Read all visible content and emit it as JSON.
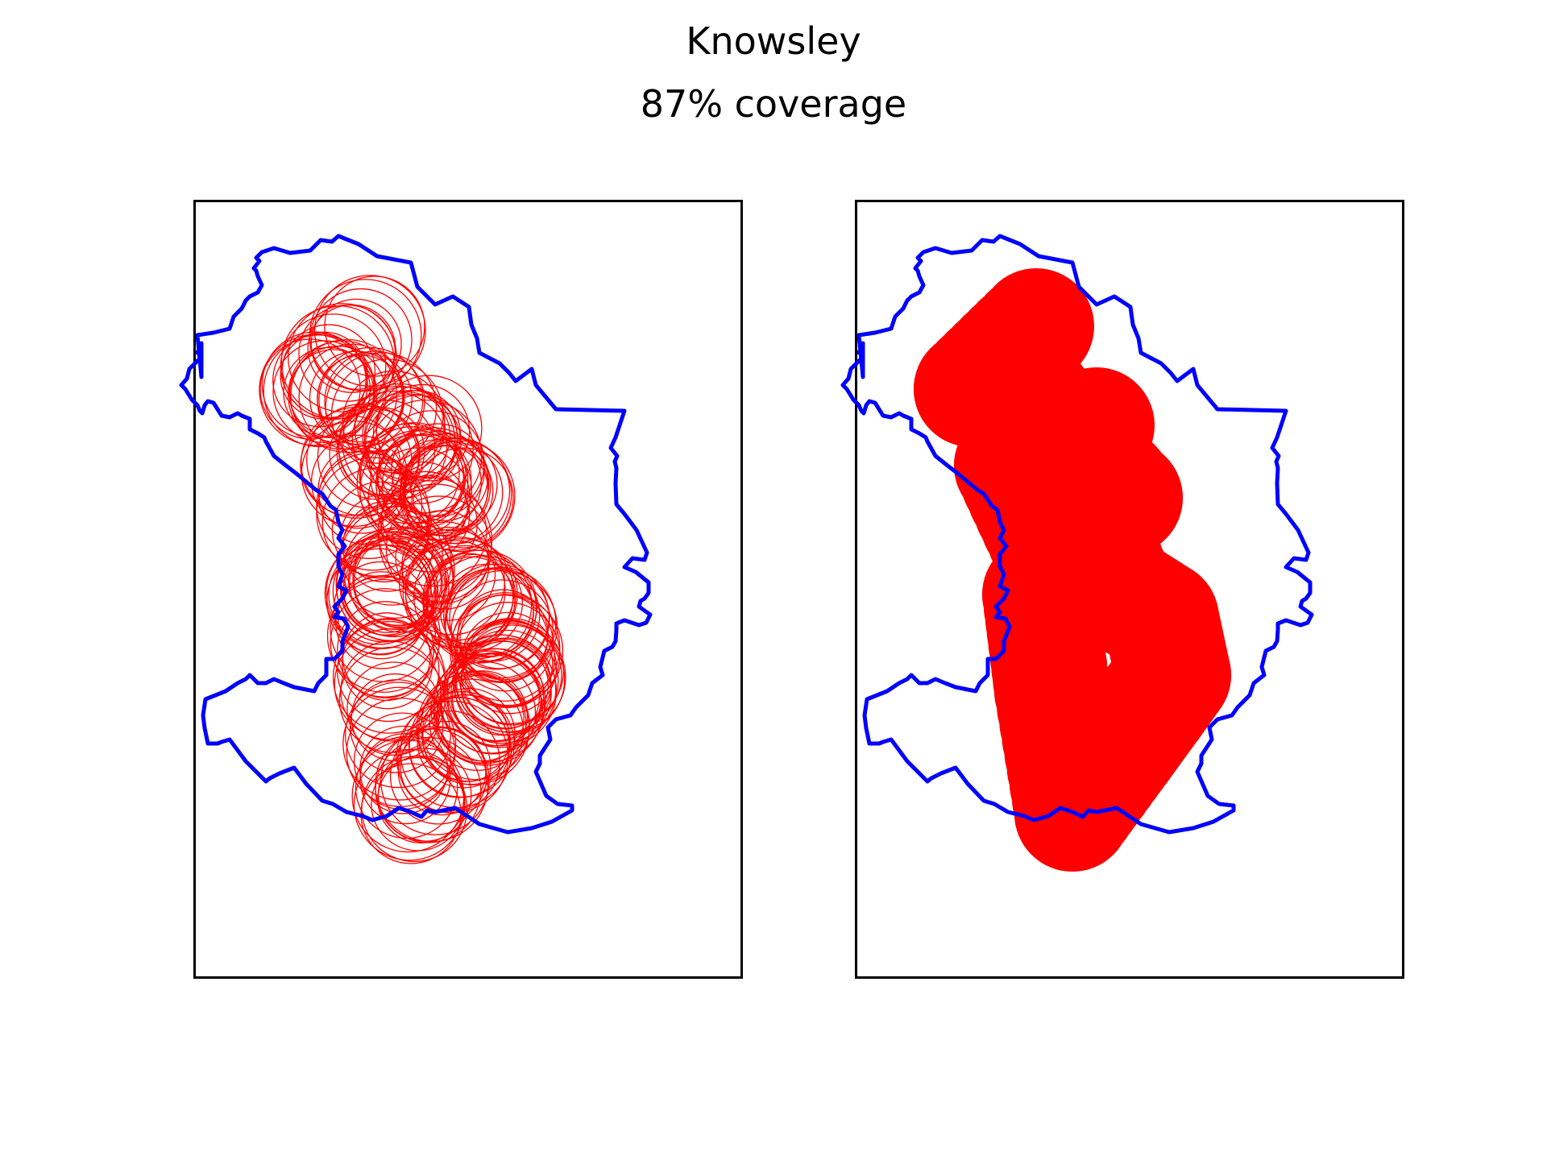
{
  "figure": {
    "title": "Knowsley",
    "subtitle": "87% coverage"
  },
  "panels": [
    {
      "id": "outlines",
      "style": "circle-outlines"
    },
    {
      "id": "filled",
      "style": "filled-union"
    }
  ],
  "colors": {
    "boundary": "#0000ff",
    "coverage": "#ff0000",
    "frame": "#000000",
    "background": "#ffffff"
  }
}
